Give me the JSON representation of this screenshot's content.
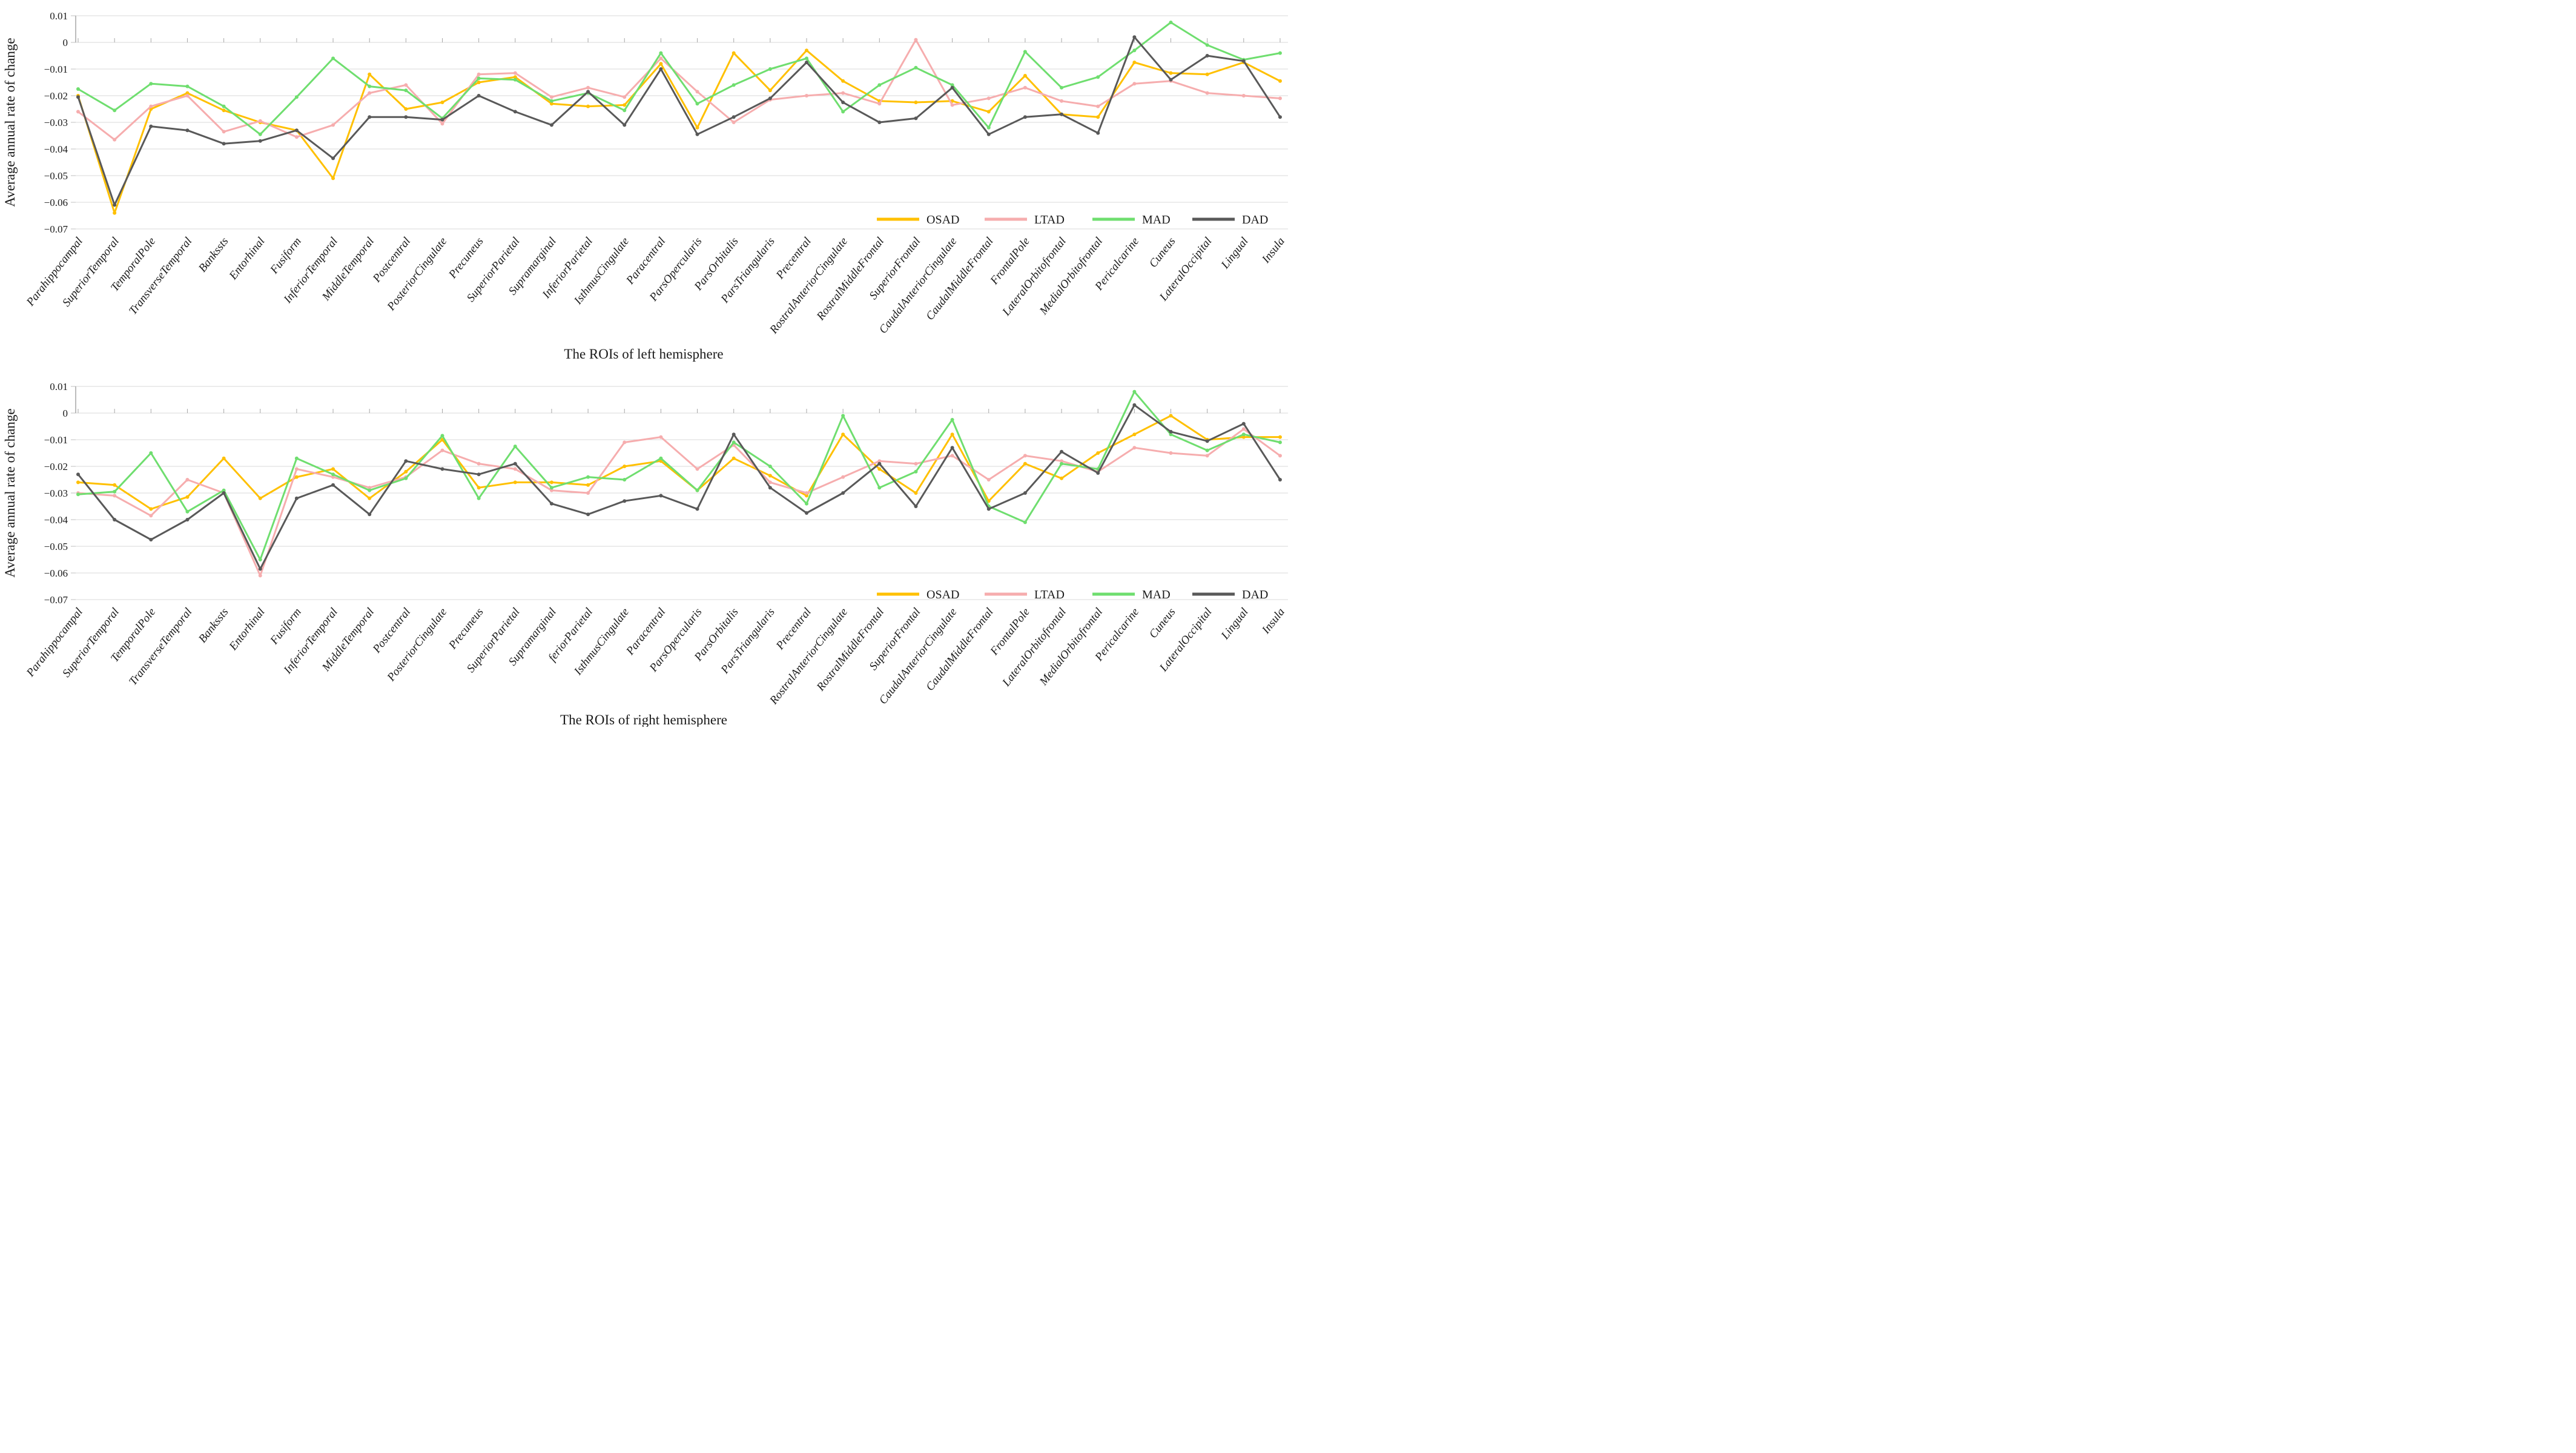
{
  "chart_data": [
    {
      "type": "line",
      "title": "",
      "xlabel": "The ROIs of left hemisphere",
      "ylabel": "Average annual rate of change",
      "ylim": [
        -0.07,
        0.01
      ],
      "ytick_step": 0.01,
      "grid": true,
      "legend_position": "inside-bottom-right",
      "ytick_labels": [
        "0.01",
        "0",
        "−0.01",
        "−0.02",
        "−0.03",
        "−0.04",
        "−0.05",
        "−0.06",
        "−0.07"
      ],
      "categories": [
        "Parahippocampal",
        "SuperiorTemporal",
        "TemporalPole",
        "TransverseTemporal",
        "Bankssts",
        "Entorhinal",
        "Fusiform",
        "InferiorTemporal",
        "MiddleTemporal",
        "Postcentral",
        "PosteriorCingulate",
        "Precuneus",
        "SuperiorParietal",
        "Supramarginal",
        "InferiorParietal",
        "IsthmusCingulate",
        "Paracentral",
        "ParsOpercularis",
        "ParsOrbitalis",
        "ParsTriangularis",
        "Precentral",
        "RostralAnteriorCingulate",
        "RostralMiddleFrontal",
        "SuperiorFrontal",
        "CaudalAnteriorCingulate",
        "CaudalMiddleFrontal",
        "FrontalPole",
        "LateralOrbitofrontal",
        "MedialOrbitofrontal",
        "Pericalcarine",
        "Cuneus",
        "LateralOccipital",
        "Lingual",
        "Insula"
      ],
      "series": [
        {
          "name": "OSAD",
          "color": "#FFC000",
          "values": [
            -0.02,
            -0.064,
            -0.025,
            -0.019,
            -0.0255,
            -0.03,
            -0.033,
            -0.051,
            -0.012,
            -0.025,
            -0.0225,
            -0.015,
            -0.013,
            -0.023,
            -0.024,
            -0.0235,
            -0.008,
            -0.032,
            -0.004,
            -0.018,
            -0.003,
            -0.0145,
            -0.022,
            -0.0225,
            -0.022,
            -0.026,
            -0.0125,
            -0.027,
            -0.028,
            -0.0075,
            -0.0115,
            -0.012,
            -0.0075,
            -0.0145
          ]
        },
        {
          "name": "LTAD",
          "color": "#F6ADAE",
          "values": [
            -0.026,
            -0.0365,
            -0.024,
            -0.02,
            -0.0335,
            -0.0295,
            -0.0355,
            -0.031,
            -0.019,
            -0.016,
            -0.0305,
            -0.012,
            -0.0115,
            -0.0205,
            -0.017,
            -0.0205,
            -0.006,
            -0.0185,
            -0.03,
            -0.0215,
            -0.02,
            -0.019,
            -0.023,
            0.001,
            -0.0235,
            -0.021,
            -0.017,
            -0.022,
            -0.024,
            -0.0155,
            -0.0145,
            -0.019,
            -0.02,
            -0.021
          ]
        },
        {
          "name": "MAD",
          "color": "#6FDE6F",
          "values": [
            -0.0175,
            -0.0255,
            -0.0155,
            -0.0165,
            -0.024,
            -0.0345,
            -0.0205,
            -0.006,
            -0.0165,
            -0.018,
            -0.0285,
            -0.0135,
            -0.014,
            -0.022,
            -0.019,
            -0.0255,
            -0.004,
            -0.023,
            -0.016,
            -0.01,
            -0.006,
            -0.026,
            -0.016,
            -0.0095,
            -0.016,
            -0.032,
            -0.0035,
            -0.017,
            -0.013,
            -0.003,
            0.0075,
            -0.001,
            -0.0065,
            -0.004
          ]
        },
        {
          "name": "DAD",
          "color": "#595959",
          "values": [
            -0.0205,
            -0.061,
            -0.0315,
            -0.033,
            -0.038,
            -0.037,
            -0.033,
            -0.0435,
            -0.028,
            -0.028,
            -0.029,
            -0.02,
            -0.026,
            -0.031,
            -0.0185,
            -0.031,
            -0.01,
            -0.0345,
            -0.028,
            -0.021,
            -0.0075,
            -0.0225,
            -0.03,
            -0.0285,
            -0.017,
            -0.0345,
            -0.028,
            -0.027,
            -0.034,
            0.002,
            -0.014,
            -0.005,
            -0.007,
            -0.028
          ]
        }
      ]
    },
    {
      "type": "line",
      "title": "",
      "xlabel": "The ROIs of right hemisphere",
      "ylabel": "Average annual rate of change",
      "ylim": [
        -0.07,
        0.01
      ],
      "ytick_step": 0.01,
      "grid": true,
      "legend_position": "inside-bottom-right",
      "ytick_labels": [
        "0.01",
        "0",
        "−0.01",
        "−0.02",
        "−0.03",
        "−0.04",
        "−0.05",
        "−0.06",
        "−0.07"
      ],
      "categories": [
        "Parahippocampal",
        "SuperiorTemporal",
        "TemporalPole",
        "TransverseTemporal",
        "Bankssts",
        "Entorhinal",
        "Fusiform",
        "InferiorTemporal",
        "MiddleTemporal",
        "Postcentral",
        "PosteriorCingulate",
        "Precuneus",
        "SuperiorParietal",
        "Supramarginal",
        "feriorParietal",
        "IsthmusCingulate",
        "Paracentral",
        "ParsOpercularis",
        "ParsOrbitalis",
        "ParsTriangularis",
        "Precentral",
        "RostralAnteriorCingulate",
        "RostralMiddleFrontal",
        "SuperiorFrontal",
        "CaudalAnteriorCingulate",
        "CaudalMiddleFrontal",
        "FrontalPole",
        "LateralOrbitofrontal",
        "MedialOrbitofrontal",
        "Pericalcarine",
        "Cuneus",
        "LateralOccipital",
        "Lingual",
        "Insula"
      ],
      "series": [
        {
          "name": "OSAD",
          "color": "#FFC000",
          "values": [
            -0.026,
            -0.027,
            -0.036,
            -0.0315,
            -0.017,
            -0.032,
            -0.024,
            -0.021,
            -0.032,
            -0.022,
            -0.01,
            -0.028,
            -0.026,
            -0.026,
            -0.027,
            -0.02,
            -0.018,
            -0.029,
            -0.017,
            -0.0235,
            -0.031,
            -0.008,
            -0.021,
            -0.03,
            -0.008,
            -0.033,
            -0.019,
            -0.0245,
            -0.015,
            -0.008,
            -0.001,
            -0.01,
            -0.009,
            -0.009
          ]
        },
        {
          "name": "LTAD",
          "color": "#F6ADAE",
          "values": [
            -0.03,
            -0.031,
            -0.0385,
            -0.025,
            -0.03,
            -0.061,
            -0.021,
            -0.024,
            -0.028,
            -0.024,
            -0.014,
            -0.019,
            -0.021,
            -0.029,
            -0.03,
            -0.011,
            -0.009,
            -0.021,
            -0.012,
            -0.026,
            -0.03,
            -0.024,
            -0.018,
            -0.019,
            -0.016,
            -0.025,
            -0.016,
            -0.018,
            -0.022,
            -0.013,
            -0.015,
            -0.016,
            -0.006,
            -0.016
          ]
        },
        {
          "name": "MAD",
          "color": "#6FDE6F",
          "values": [
            -0.0305,
            -0.0295,
            -0.015,
            -0.037,
            -0.029,
            -0.055,
            -0.017,
            -0.023,
            -0.029,
            -0.0245,
            -0.0085,
            -0.032,
            -0.0125,
            -0.028,
            -0.024,
            -0.025,
            -0.017,
            -0.029,
            -0.011,
            -0.02,
            -0.034,
            -0.001,
            -0.028,
            -0.022,
            -0.0025,
            -0.035,
            -0.041,
            -0.019,
            -0.021,
            0.008,
            -0.008,
            -0.014,
            -0.008,
            -0.011
          ]
        },
        {
          "name": "DAD",
          "color": "#595959",
          "values": [
            -0.023,
            -0.04,
            -0.0475,
            -0.04,
            -0.03,
            -0.0585,
            -0.032,
            -0.027,
            -0.038,
            -0.018,
            -0.021,
            -0.023,
            -0.019,
            -0.034,
            -0.038,
            -0.033,
            -0.031,
            -0.036,
            -0.008,
            -0.028,
            -0.0375,
            -0.03,
            -0.019,
            -0.035,
            -0.013,
            -0.036,
            -0.03,
            -0.0145,
            -0.0225,
            0.003,
            -0.007,
            -0.0105,
            -0.004,
            -0.025
          ]
        }
      ]
    }
  ]
}
